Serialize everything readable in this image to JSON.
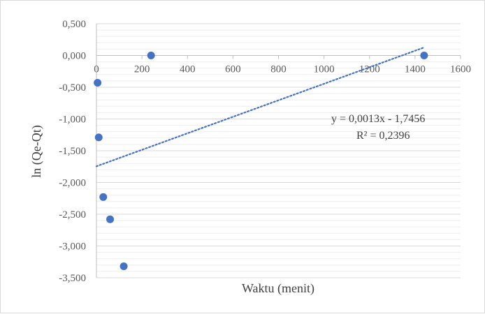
{
  "chart_data": {
    "type": "scatter",
    "xlabel": "Waktu (menit)",
    "ylabel": "ln (Qe-Qt)",
    "xlim": [
      0,
      1600
    ],
    "ylim": [
      -3.5,
      0.5
    ],
    "x_ticks": [
      0,
      200,
      400,
      600,
      800,
      1000,
      1200,
      1400,
      1600
    ],
    "x_tick_labels": [
      "0",
      "200",
      "400",
      "600",
      "800",
      "1000",
      "1200",
      "1400",
      "1600"
    ],
    "y_ticks": [
      0.5,
      0,
      -0.5,
      -1,
      -1.5,
      -2,
      -2.5,
      -3,
      -3.5
    ],
    "y_tick_labels": [
      "0,500",
      "0,000",
      "-0,500",
      "-1,000",
      "-1,500",
      "-2,000",
      "-2,500",
      "-3,000",
      "-3,500"
    ],
    "minor_y_step": 0.1,
    "grid": true,
    "x_axis_at_y": 0,
    "series": [
      {
        "points": [
          {
            "x": 5,
            "y": -0.43
          },
          {
            "x": 10,
            "y": -1.29
          },
          {
            "x": 30,
            "y": -2.23
          },
          {
            "x": 60,
            "y": -2.58
          },
          {
            "x": 120,
            "y": -3.32
          },
          {
            "x": 240,
            "y": 0.0
          },
          {
            "x": 1440,
            "y": 0.0
          }
        ],
        "color": "#4472c4"
      }
    ],
    "trendline": {
      "type": "linear",
      "slope": 0.0013,
      "intercept": -1.7456,
      "x_range": [
        0,
        1440
      ],
      "color": "#4472c4",
      "style": "dotted"
    },
    "annotations": {
      "equation": "y = 0,0013x - 1,7456",
      "r_squared": "R² = 0,2396"
    }
  }
}
